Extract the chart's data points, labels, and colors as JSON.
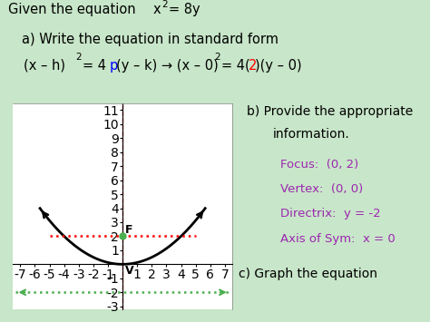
{
  "background_color": "#c8e6c9",
  "graph_bg": "#ffffff",
  "info_color": "#9c27b0",
  "parabola_color": "#000000",
  "focus_color": "#4caf50",
  "focus_line_color": "#ff0000",
  "directrix_color": "#4caf50",
  "axis_sym_color": "#ff0000",
  "xlim": [
    -7.5,
    7.5
  ],
  "ylim": [
    -3.2,
    11.5
  ],
  "xticks": [
    -7,
    -6,
    -5,
    -4,
    -3,
    -2,
    -1,
    1,
    2,
    3,
    4,
    5,
    6,
    7
  ],
  "yticks": [
    -3,
    -2,
    -1,
    1,
    2,
    3,
    4,
    5,
    6,
    7,
    8,
    9,
    10,
    11
  ]
}
